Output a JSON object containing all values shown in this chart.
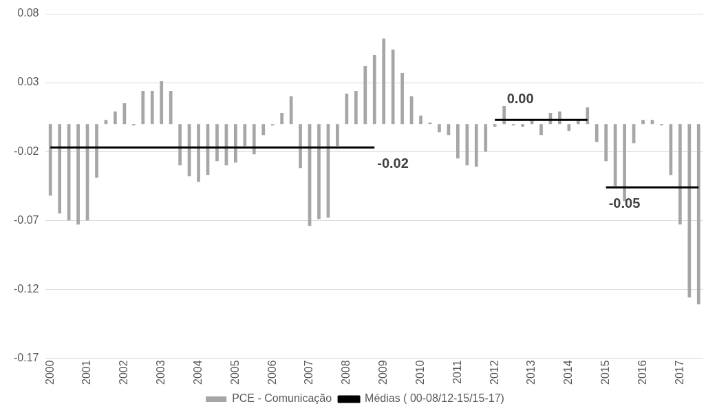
{
  "chart_data": {
    "type": "bar",
    "categories": [
      "2000",
      null,
      null,
      null,
      "2001",
      null,
      null,
      null,
      "2002",
      null,
      null,
      null,
      "2003",
      null,
      null,
      null,
      "2004",
      null,
      null,
      null,
      "2005",
      null,
      null,
      null,
      "2006",
      null,
      null,
      null,
      "2007",
      null,
      null,
      null,
      "2008",
      null,
      null,
      null,
      "2009",
      null,
      null,
      null,
      "2010",
      null,
      null,
      null,
      "2011",
      null,
      null,
      null,
      "2012",
      null,
      null,
      null,
      "2013",
      null,
      null,
      null,
      "2014",
      null,
      null,
      null,
      "2015",
      null,
      null,
      null,
      "2016",
      null,
      null,
      null,
      "2017",
      null,
      null
    ],
    "series": [
      {
        "name": "PCE - Comunicação",
        "color": "#a6a6a6",
        "values": [
          -0.052,
          -0.065,
          -0.07,
          -0.073,
          -0.07,
          -0.039,
          0.003,
          0.009,
          0.015,
          -0.001,
          0.024,
          0.024,
          0.031,
          0.024,
          -0.03,
          -0.038,
          -0.042,
          -0.037,
          -0.027,
          -0.03,
          -0.028,
          -0.016,
          -0.022,
          -0.008,
          -0.001,
          0.008,
          0.02,
          -0.032,
          -0.074,
          -0.069,
          -0.068,
          -0.016,
          0.022,
          0.024,
          0.042,
          0.05,
          0.062,
          0.054,
          0.037,
          0.02,
          0.006,
          0.001,
          -0.006,
          -0.008,
          -0.025,
          -0.03,
          -0.031,
          -0.02,
          -0.002,
          0.013,
          -0.001,
          -0.002,
          0.003,
          -0.008,
          0.008,
          0.009,
          -0.005,
          0.003,
          0.012,
          -0.013,
          -0.027,
          -0.045,
          -0.056,
          -0.014,
          0.003,
          0.003,
          -0.001,
          -0.037,
          -0.073,
          -0.126,
          -0.131
        ]
      },
      {
        "name": "Médias ( 00-08/12-15/15-17)",
        "type": "line",
        "color": "#000000",
        "values": [
          -0.017,
          -0.017,
          -0.017,
          -0.017,
          -0.017,
          -0.017,
          -0.017,
          -0.017,
          -0.017,
          -0.017,
          -0.017,
          -0.017,
          -0.017,
          -0.017,
          -0.017,
          -0.017,
          -0.017,
          -0.017,
          -0.017,
          -0.017,
          -0.017,
          -0.017,
          -0.017,
          -0.017,
          -0.017,
          -0.017,
          -0.017,
          -0.017,
          -0.017,
          -0.017,
          -0.017,
          -0.017,
          -0.017,
          -0.017,
          -0.017,
          -0.017,
          null,
          null,
          null,
          null,
          null,
          null,
          null,
          null,
          null,
          null,
          null,
          null,
          0.003,
          0.003,
          0.003,
          0.003,
          0.003,
          0.003,
          0.003,
          0.003,
          0.003,
          0.003,
          0.003,
          null,
          -0.046,
          -0.046,
          -0.046,
          -0.046,
          -0.046,
          -0.046,
          -0.046,
          -0.046,
          -0.046,
          -0.046,
          -0.046
        ],
        "value_labels": [
          null,
          null,
          null,
          null,
          null,
          null,
          null,
          null,
          null,
          null,
          null,
          null,
          null,
          null,
          null,
          null,
          null,
          null,
          null,
          null,
          null,
          null,
          null,
          null,
          null,
          null,
          null,
          null,
          null,
          null,
          null,
          null,
          null,
          null,
          null,
          "-0.02",
          null,
          null,
          null,
          null,
          null,
          null,
          null,
          null,
          null,
          null,
          null,
          null,
          null,
          "0.00",
          null,
          null,
          null,
          null,
          null,
          null,
          null,
          null,
          null,
          null,
          "-0.05",
          null,
          null,
          null,
          null,
          null,
          null,
          null,
          null,
          null,
          null
        ]
      }
    ],
    "ylim": [
      -0.17,
      0.08
    ],
    "yticks": [
      0.08,
      0.03,
      -0.02,
      -0.07,
      -0.12,
      -0.17
    ],
    "grid": "y",
    "legend": "bottom",
    "marker": "none",
    "line_style": "solid"
  }
}
